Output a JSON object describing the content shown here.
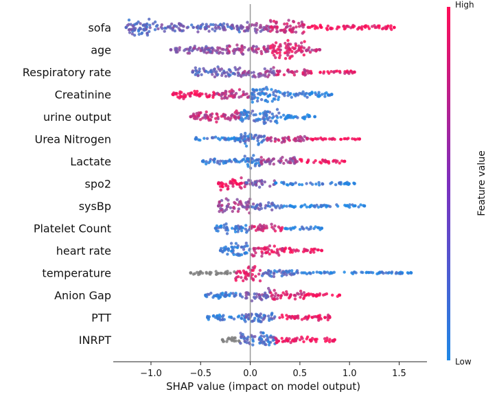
{
  "chart_data": {
    "type": "scatter",
    "subtype": "shap-beeswarm",
    "title": "",
    "xlabel": "SHAP value (impact on model output)",
    "ylabel": "",
    "xlim": [
      -1.38,
      1.78
    ],
    "xticks": [
      -1.0,
      -0.5,
      0.0,
      0.5,
      1.0,
      1.5
    ],
    "xtick_labels": [
      "−1.0",
      "−0.5",
      "0.0",
      "0.5",
      "1.0",
      "1.5"
    ],
    "colorbar": {
      "label": "Feature value",
      "high_label": "High",
      "low_label": "Low",
      "low_color": "#1e88e5",
      "high_color": "#ff0d57"
    },
    "zero_line_color": "#999999",
    "features": [
      {
        "name": "sofa",
        "min": -1.25,
        "max": 1.45,
        "segments": [
          [
            -1.25,
            -0.95,
            0.9,
            0.25
          ],
          [
            -0.95,
            -0.1,
            0.45,
            0.3
          ],
          [
            -0.1,
            0.2,
            0.55,
            0.5
          ],
          [
            0.2,
            0.55,
            0.75,
            0.75
          ],
          [
            0.55,
            1.45,
            0.22,
            0.98
          ]
        ]
      },
      {
        "name": "age",
        "min": -0.8,
        "max": 0.7,
        "segments": [
          [
            -0.8,
            -0.3,
            0.45,
            0.45
          ],
          [
            -0.3,
            0.2,
            0.5,
            0.6
          ],
          [
            0.2,
            0.55,
            0.9,
            0.85
          ],
          [
            0.55,
            0.7,
            0.3,
            0.7
          ]
        ]
      },
      {
        "name": "Respiratory rate",
        "min": -0.58,
        "max": 1.05,
        "segments": [
          [
            -0.58,
            -0.1,
            0.5,
            0.3
          ],
          [
            -0.1,
            0.25,
            0.55,
            0.5
          ],
          [
            0.25,
            0.6,
            0.35,
            0.75
          ],
          [
            0.6,
            1.05,
            0.15,
            0.9
          ]
        ]
      },
      {
        "name": "Creatinine",
        "min": -0.78,
        "max": 0.82,
        "segments": [
          [
            -0.78,
            -0.35,
            0.45,
            0.95
          ],
          [
            -0.35,
            0.0,
            0.5,
            0.7
          ],
          [
            0.0,
            0.3,
            0.8,
            0.1
          ],
          [
            0.3,
            0.82,
            0.3,
            0.05
          ]
        ]
      },
      {
        "name": "urine output",
        "min": -0.6,
        "max": 0.65,
        "segments": [
          [
            -0.6,
            -0.1,
            0.6,
            0.7
          ],
          [
            -0.1,
            0.3,
            0.7,
            0.15
          ],
          [
            0.3,
            0.65,
            0.25,
            0.05
          ]
        ]
      },
      {
        "name": "Urea Nitrogen",
        "min": -0.55,
        "max": 1.1,
        "segments": [
          [
            -0.55,
            -0.1,
            0.25,
            0.1
          ],
          [
            -0.1,
            0.15,
            0.75,
            0.2
          ],
          [
            0.15,
            0.6,
            0.35,
            0.7
          ],
          [
            0.6,
            1.1,
            0.12,
            0.95
          ]
        ]
      },
      {
        "name": "Lactate",
        "min": -0.48,
        "max": 0.95,
        "segments": [
          [
            -0.48,
            -0.1,
            0.3,
            0.1
          ],
          [
            -0.1,
            0.1,
            0.75,
            0.15
          ],
          [
            0.1,
            0.5,
            0.45,
            0.55
          ],
          [
            0.5,
            0.95,
            0.2,
            0.95
          ]
        ]
      },
      {
        "name": "spo2",
        "min": -0.32,
        "max": 1.05,
        "segments": [
          [
            -0.32,
            -0.05,
            0.65,
            0.95
          ],
          [
            -0.05,
            0.25,
            0.4,
            0.4
          ],
          [
            0.25,
            1.05,
            0.15,
            0.05
          ]
        ]
      },
      {
        "name": "sysBp",
        "min": -0.32,
        "max": 1.15,
        "segments": [
          [
            -0.32,
            0.0,
            0.7,
            0.55
          ],
          [
            0.0,
            0.3,
            0.4,
            0.3
          ],
          [
            0.3,
            1.15,
            0.15,
            0.05
          ]
        ]
      },
      {
        "name": "Platelet Count",
        "min": -0.35,
        "max": 0.72,
        "segments": [
          [
            -0.35,
            0.0,
            0.5,
            0.15
          ],
          [
            0.0,
            0.35,
            0.4,
            0.8
          ],
          [
            0.35,
            0.72,
            0.15,
            0.05
          ]
        ]
      },
      {
        "name": "heart rate",
        "min": -0.3,
        "max": 0.72,
        "segments": [
          [
            -0.3,
            0.0,
            0.7,
            0.15
          ],
          [
            0.0,
            0.35,
            0.55,
            0.85
          ],
          [
            0.35,
            0.72,
            0.25,
            0.95
          ]
        ]
      },
      {
        "name": "temperature",
        "min": -0.6,
        "max": 1.62,
        "segments": [
          [
            -0.6,
            -0.15,
            0.2,
            -1
          ],
          [
            -0.15,
            0.1,
            0.8,
            0.85
          ],
          [
            0.1,
            0.5,
            0.4,
            0.2
          ],
          [
            0.5,
            1.62,
            0.1,
            0.05
          ]
        ]
      },
      {
        "name": "Anion Gap",
        "min": -0.45,
        "max": 0.9,
        "segments": [
          [
            -0.45,
            -0.05,
            0.35,
            0.1
          ],
          [
            -0.05,
            0.2,
            0.65,
            0.4
          ],
          [
            0.2,
            0.55,
            0.45,
            0.85
          ],
          [
            0.55,
            0.9,
            0.15,
            0.98
          ]
        ]
      },
      {
        "name": "PTT",
        "min": -0.43,
        "max": 0.8,
        "segments": [
          [
            -0.43,
            -0.05,
            0.3,
            0.1
          ],
          [
            -0.05,
            0.25,
            0.7,
            0.2
          ],
          [
            0.25,
            0.8,
            0.3,
            0.9
          ]
        ]
      },
      {
        "name": "INRPT",
        "min": -0.28,
        "max": 0.85,
        "segments": [
          [
            -0.28,
            -0.1,
            0.3,
            -1
          ],
          [
            -0.1,
            0.25,
            0.75,
            0.2
          ],
          [
            0.25,
            0.85,
            0.3,
            0.95
          ]
        ]
      }
    ]
  }
}
